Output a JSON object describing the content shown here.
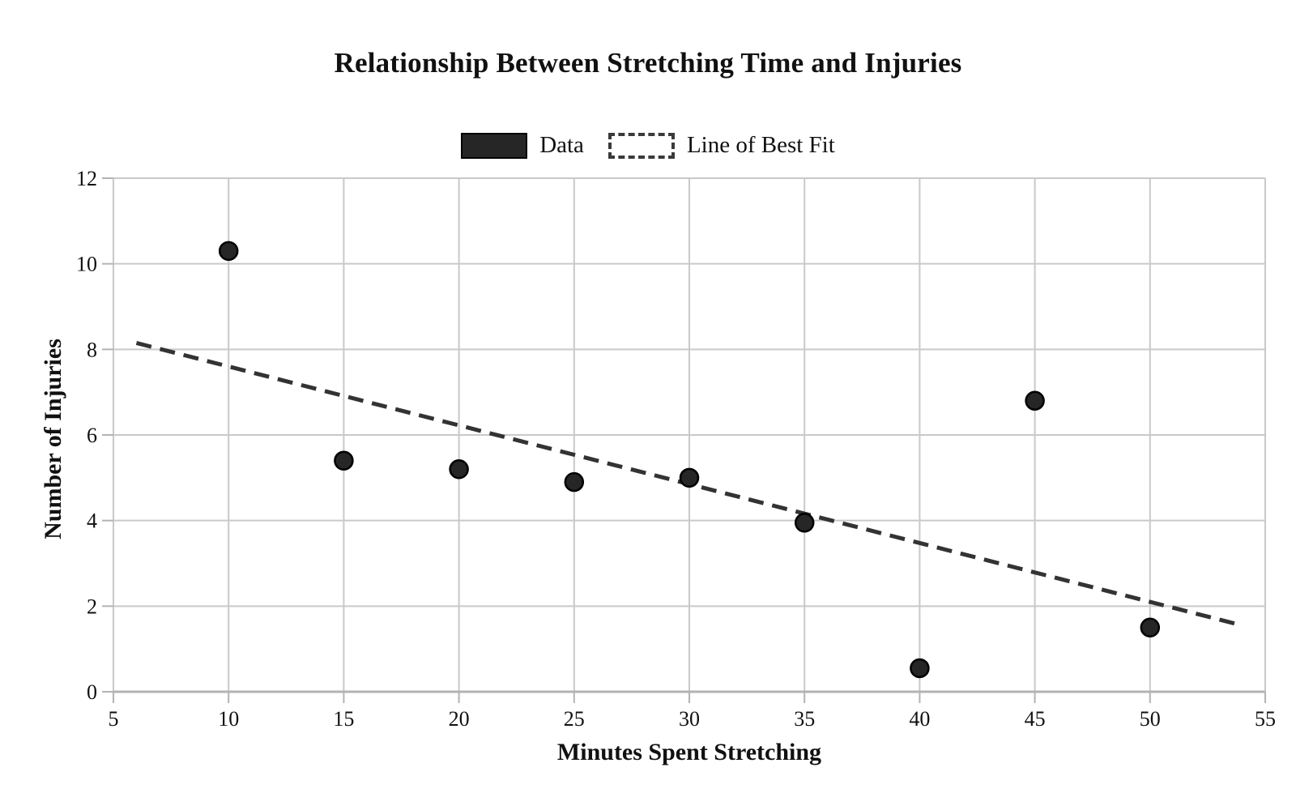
{
  "chart_data": {
    "type": "scatter",
    "title": "Relationship Between Stretching Time and Injuries",
    "xlabel": "Minutes Spent Stretching",
    "ylabel": "Number of Injuries",
    "xlim": [
      5,
      55
    ],
    "ylim": [
      0,
      12
    ],
    "x_ticks": [
      5,
      10,
      15,
      20,
      25,
      30,
      35,
      40,
      45,
      50,
      55
    ],
    "y_ticks": [
      0,
      2,
      4,
      6,
      8,
      10,
      12
    ],
    "grid": true,
    "legend_position": "top-center",
    "legend": {
      "data_label": "Data",
      "fit_label": "Line of Best Fit"
    },
    "series": [
      {
        "name": "Data",
        "type": "scatter",
        "points": [
          [
            10,
            10.3
          ],
          [
            15,
            5.4
          ],
          [
            20,
            5.2
          ],
          [
            25,
            4.9
          ],
          [
            30,
            5.0
          ],
          [
            35,
            3.95
          ],
          [
            40,
            0.55
          ],
          [
            45,
            6.8
          ],
          [
            50,
            1.5
          ]
        ]
      },
      {
        "name": "Line of Best Fit",
        "type": "line",
        "style": "dashed",
        "endpoints": [
          [
            6,
            8.15
          ],
          [
            54,
            1.55
          ]
        ]
      }
    ],
    "colors": {
      "point_fill": "#262626",
      "point_edge": "#000000",
      "fit_line": "#333333",
      "gridline": "#c9c9c9",
      "axis_line": "#b3b3b3",
      "text": "#111111"
    }
  }
}
